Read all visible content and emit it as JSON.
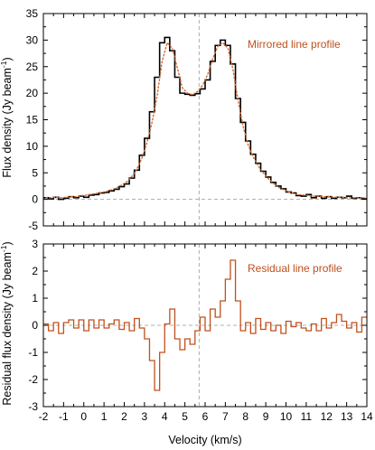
{
  "chart_data": [
    {
      "type": "line",
      "panel": "top",
      "ylabel": "Flux density (Jy beam",
      "ylabel_sup": "-1",
      "ylabel_close": ")",
      "xlim": [
        -2,
        14
      ],
      "ylim": [
        -5,
        35
      ],
      "yticks": [
        -5,
        0,
        5,
        10,
        15,
        20,
        25,
        30,
        35
      ],
      "x_tick_labels_shown": false,
      "reference_lines": {
        "horizontal_y": 0,
        "vertical_x": 5.7,
        "style": "dashed",
        "color": "#999999"
      },
      "annotations": [
        {
          "text": "Mirrored line profile",
          "color": "#c0501b",
          "position": "top-right"
        }
      ],
      "series": [
        {
          "style": "step",
          "color": "#000000",
          "x": [
            -2.0,
            -1.75,
            -1.5,
            -1.25,
            -1.0,
            -0.75,
            -0.5,
            -0.25,
            0.0,
            0.25,
            0.5,
            0.75,
            1.0,
            1.25,
            1.5,
            1.75,
            2.0,
            2.25,
            2.5,
            2.75,
            3.0,
            3.25,
            3.5,
            3.75,
            4.0,
            4.25,
            4.5,
            4.75,
            5.0,
            5.25,
            5.5,
            5.75,
            6.0,
            6.25,
            6.5,
            6.75,
            7.0,
            7.25,
            7.5,
            7.75,
            8.0,
            8.25,
            8.5,
            8.75,
            9.0,
            9.25,
            9.5,
            9.75,
            10.0,
            10.25,
            10.5,
            10.75,
            11.0,
            11.25,
            11.5,
            11.75,
            12.0,
            12.25,
            12.5,
            12.75,
            13.0,
            13.25,
            13.5,
            13.75
          ],
          "values": [
            0.3,
            0.1,
            0.4,
            0.0,
            0.2,
            0.5,
            0.3,
            0.6,
            0.4,
            0.8,
            0.9,
            1.2,
            1.3,
            1.6,
            1.9,
            2.4,
            2.9,
            4.0,
            5.5,
            8.3,
            11.5,
            16.5,
            23.0,
            29.5,
            30.5,
            28.0,
            23.0,
            20.0,
            19.8,
            19.6,
            19.9,
            20.8,
            22.5,
            26.0,
            29.0,
            30.0,
            29.0,
            25.5,
            19.0,
            14.5,
            11.0,
            8.5,
            6.8,
            5.3,
            4.2,
            3.2,
            2.5,
            2.0,
            1.4,
            1.2,
            0.7,
            0.6,
            0.9,
            0.3,
            0.6,
            0.2,
            0.5,
            0.2,
            0.4,
            0.3,
            0.6,
            0.2,
            0.3,
            0.1
          ]
        },
        {
          "style": "dotted",
          "color": "#d2692e",
          "x": [
            -2.0,
            -1.75,
            -1.5,
            -1.25,
            -1.0,
            -0.75,
            -0.5,
            -0.25,
            0.0,
            0.25,
            0.5,
            0.75,
            1.0,
            1.25,
            1.5,
            1.75,
            2.0,
            2.25,
            2.5,
            2.75,
            3.0,
            3.25,
            3.5,
            3.75,
            4.0,
            4.25,
            4.5,
            4.75,
            5.0,
            5.25,
            5.5,
            5.75,
            6.0,
            6.25,
            6.5,
            6.75,
            7.0,
            7.25,
            7.5,
            7.75,
            8.0,
            8.25,
            8.5,
            8.75,
            9.0,
            9.25,
            9.5,
            9.75,
            10.0,
            10.25,
            10.5,
            10.75,
            11.0,
            11.25,
            11.5,
            11.75,
            12.0,
            12.25,
            12.5,
            12.75,
            13.0,
            13.25,
            13.5,
            13.75
          ],
          "values": [
            0.3,
            0.3,
            0.4,
            0.3,
            0.4,
            0.5,
            0.5,
            0.7,
            0.8,
            1.0,
            1.1,
            1.3,
            1.5,
            1.8,
            2.2,
            2.7,
            3.3,
            4.3,
            5.7,
            7.8,
            10.7,
            14.5,
            19.5,
            26.0,
            29.5,
            28.5,
            24.8,
            21.0,
            20.0,
            19.7,
            20.3,
            21.5,
            23.5,
            26.5,
            28.8,
            29.5,
            28.5,
            24.5,
            18.7,
            13.8,
            10.3,
            8.0,
            6.3,
            5.0,
            3.9,
            3.0,
            2.3,
            1.8,
            1.4,
            1.1,
            0.9,
            0.8,
            0.7,
            0.6,
            0.6,
            0.5,
            0.5,
            0.4,
            0.4,
            0.4,
            0.3,
            0.3,
            0.3,
            0.3
          ]
        }
      ]
    },
    {
      "type": "line",
      "panel": "bottom",
      "xlabel": "Velocity (km/s)",
      "ylabel": "Residual flux density (Jy beam",
      "ylabel_sup": "-1",
      "ylabel_close": ")",
      "xlim": [
        -2,
        14
      ],
      "ylim": [
        -3,
        3
      ],
      "xticks": [
        -2,
        -1,
        0,
        1,
        2,
        3,
        4,
        5,
        6,
        7,
        8,
        9,
        10,
        11,
        12,
        13,
        14
      ],
      "yticks": [
        -3,
        -2,
        -1,
        0,
        1,
        2,
        3
      ],
      "reference_lines": {
        "horizontal_y": 0,
        "vertical_x": 5.7,
        "style": "dashed",
        "color": "#999999"
      },
      "annotations": [
        {
          "text": "Residual line profile",
          "color": "#c0501b",
          "position": "top-right"
        }
      ],
      "series": [
        {
          "style": "step",
          "color": "#c0501b",
          "x": [
            -2.0,
            -1.75,
            -1.5,
            -1.25,
            -1.0,
            -0.75,
            -0.5,
            -0.25,
            0.0,
            0.25,
            0.5,
            0.75,
            1.0,
            1.25,
            1.5,
            1.75,
            2.0,
            2.25,
            2.5,
            2.75,
            3.0,
            3.25,
            3.5,
            3.75,
            4.0,
            4.25,
            4.5,
            4.75,
            5.0,
            5.25,
            5.5,
            5.75,
            6.0,
            6.25,
            6.5,
            6.75,
            7.0,
            7.25,
            7.5,
            7.75,
            8.0,
            8.25,
            8.5,
            8.75,
            9.0,
            9.25,
            9.5,
            9.75,
            10.0,
            10.25,
            10.5,
            10.75,
            11.0,
            11.25,
            11.5,
            11.75,
            12.0,
            12.25,
            12.5,
            12.75,
            13.0,
            13.25,
            13.5,
            13.75
          ],
          "values": [
            0.05,
            -0.2,
            0.1,
            -0.3,
            0.1,
            0.2,
            -0.1,
            0.2,
            -0.2,
            0.2,
            -0.1,
            0.2,
            -0.1,
            0.05,
            0.2,
            -0.15,
            0.1,
            -0.2,
            0.25,
            -0.1,
            -0.5,
            -1.3,
            -2.4,
            -1.0,
            0.05,
            0.6,
            -0.5,
            -0.9,
            -0.5,
            -0.7,
            -0.2,
            0.3,
            -0.2,
            0.6,
            0.3,
            0.9,
            1.7,
            2.4,
            0.9,
            -0.2,
            0.1,
            -0.3,
            0.25,
            -0.15,
            0.1,
            -0.2,
            0.0,
            -0.3,
            0.15,
            -0.05,
            0.1,
            -0.1,
            -0.2,
            0.05,
            -0.2,
            0.25,
            -0.1,
            0.1,
            0.4,
            0.15,
            -0.1,
            0.1,
            -0.25,
            0.3
          ]
        }
      ]
    }
  ]
}
